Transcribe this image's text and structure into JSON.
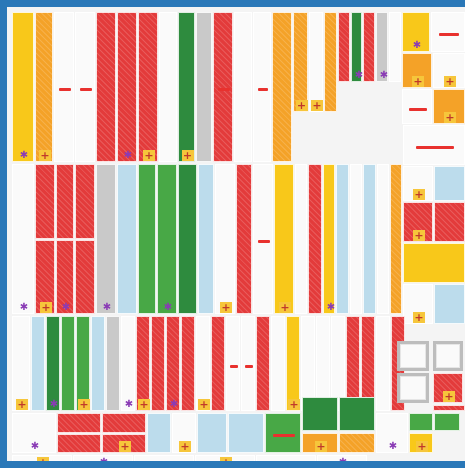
{
  "mosaic": {
    "colors": {
      "frame": "#2a78b8",
      "red": "#e33b3b",
      "orange": "#f4a228",
      "yellow": "#f8c81a",
      "green": "#48a846",
      "dark_green": "#2e8b3e",
      "light_blue": "#bcdcec",
      "gray": "#c9c9c9",
      "white": "#fafafa"
    },
    "icons": [
      "star-badge-icon",
      "cross-badge-icon"
    ],
    "palette_order": [
      "red",
      "orange",
      "yellow",
      "green",
      "dark_green",
      "light_blue",
      "gray",
      "white"
    ]
  }
}
